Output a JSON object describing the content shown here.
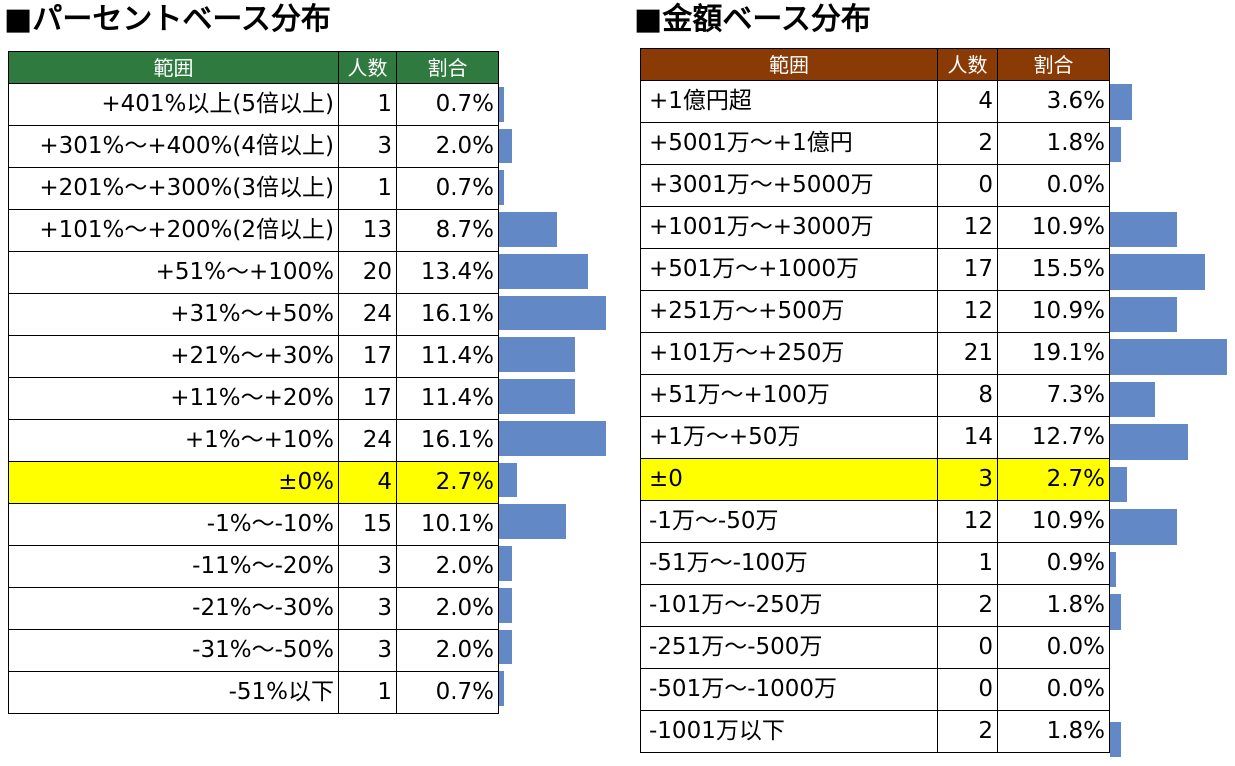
{
  "left": {
    "title": "■パーセントベース分布",
    "headers": [
      "範囲",
      "人数",
      "割合"
    ],
    "highlight_label": "±0%",
    "rows": [
      {
        "range": "+401%以上(5倍以上)",
        "count": "1",
        "pct": "0.7%"
      },
      {
        "range": "+301%～+400%(4倍以上)",
        "count": "3",
        "pct": "2.0%"
      },
      {
        "range": "+201%～+300%(3倍以上)",
        "count": "1",
        "pct": "0.7%"
      },
      {
        "range": "+101%～+200%(2倍以上)",
        "count": "13",
        "pct": "8.7%"
      },
      {
        "range": "+51%～+100%",
        "count": "20",
        "pct": "13.4%"
      },
      {
        "range": "+31%～+50%",
        "count": "24",
        "pct": "16.1%"
      },
      {
        "range": "+21%～+30%",
        "count": "17",
        "pct": "11.4%"
      },
      {
        "range": "+11%～+20%",
        "count": "17",
        "pct": "11.4%"
      },
      {
        "range": "+1%～+10%",
        "count": "24",
        "pct": "16.1%"
      },
      {
        "range": "±0%",
        "count": "4",
        "pct": "2.7%"
      },
      {
        "range": "-1%～-10%",
        "count": "15",
        "pct": "10.1%"
      },
      {
        "range": "-11%～-20%",
        "count": "3",
        "pct": "2.0%"
      },
      {
        "range": "-21%～-30%",
        "count": "3",
        "pct": "2.0%"
      },
      {
        "range": "-31%～-50%",
        "count": "3",
        "pct": "2.0%"
      },
      {
        "range": "-51%以下",
        "count": "1",
        "pct": "0.7%"
      }
    ]
  },
  "right": {
    "title": "■金額ベース分布",
    "headers": [
      "範囲",
      "人数",
      "割合"
    ],
    "highlight_label": "±0",
    "rows": [
      {
        "range": "+1億円超",
        "count": "4",
        "pct": "3.6%"
      },
      {
        "range": "+5001万～+1億円",
        "count": "2",
        "pct": "1.8%"
      },
      {
        "range": "+3001万～+5000万",
        "count": "0",
        "pct": "0.0%"
      },
      {
        "range": "+1001万～+3000万",
        "count": "12",
        "pct": "10.9%"
      },
      {
        "range": "+501万～+1000万",
        "count": "17",
        "pct": "15.5%"
      },
      {
        "range": "+251万～+500万",
        "count": "12",
        "pct": "10.9%"
      },
      {
        "range": "+101万～+250万",
        "count": "21",
        "pct": "19.1%"
      },
      {
        "range": "+51万～+100万",
        "count": "8",
        "pct": "7.3%"
      },
      {
        "range": "+1万～+50万",
        "count": "14",
        "pct": "12.7%"
      },
      {
        "range": "±0",
        "count": "3",
        "pct": "2.7%"
      },
      {
        "range": "-1万～-50万",
        "count": "12",
        "pct": "10.9%"
      },
      {
        "range": "-51万～-100万",
        "count": "1",
        "pct": "0.9%"
      },
      {
        "range": "-101万～-250万",
        "count": "2",
        "pct": "1.8%"
      },
      {
        "range": "-251万～-500万",
        "count": "0",
        "pct": "0.0%"
      },
      {
        "range": "-501万～-1000万",
        "count": "0",
        "pct": "0.0%"
      },
      {
        "range": "-1001万以下",
        "count": "2",
        "pct": "1.8%"
      }
    ]
  },
  "chart_data": [
    {
      "type": "bar",
      "orientation": "horizontal",
      "title": "■パーセントベース分布",
      "categories": [
        "+401%以上(5倍以上)",
        "+301%～+400%(4倍以上)",
        "+201%～+300%(3倍以上)",
        "+101%～+200%(2倍以上)",
        "+51%～+100%",
        "+31%～+50%",
        "+21%～+30%",
        "+11%～+20%",
        "+1%～+10%",
        "±0%",
        "-1%～-10%",
        "-11%～-20%",
        "-21%～-30%",
        "-31%～-50%",
        "-51%以下"
      ],
      "counts": [
        1,
        3,
        1,
        13,
        20,
        24,
        17,
        17,
        24,
        4,
        15,
        3,
        3,
        3,
        1
      ],
      "values": [
        0.7,
        2.0,
        0.7,
        8.7,
        13.4,
        16.1,
        11.4,
        11.4,
        16.1,
        2.7,
        10.1,
        2.0,
        2.0,
        2.0,
        0.7
      ],
      "highlight_color": "#ffff00",
      "bar_color": "#6289c6",
      "header_color": "#2e7a3f"
    },
    {
      "type": "bar",
      "orientation": "horizontal",
      "title": "■金額ベース分布",
      "categories": [
        "+1億円超",
        "+5001万～+1億円",
        "+3001万～+5000万",
        "+1001万～+3000万",
        "+501万～+1000万",
        "+251万～+500万",
        "+101万～+250万",
        "+51万～+100万",
        "+1万～+50万",
        "±0",
        "-1万～-50万",
        "-51万～-100万",
        "-101万～-250万",
        "-251万～-500万",
        "-501万～-1000万",
        "-1001万以下"
      ],
      "counts": [
        4,
        2,
        0,
        12,
        17,
        12,
        21,
        8,
        14,
        3,
        12,
        1,
        2,
        0,
        0,
        2
      ],
      "values": [
        3.6,
        1.8,
        0.0,
        10.9,
        15.5,
        10.9,
        19.1,
        7.3,
        12.7,
        2.7,
        10.9,
        0.9,
        1.8,
        0.0,
        0.0,
        1.8
      ],
      "highlight_color": "#ffff00",
      "bar_color": "#6289c6",
      "header_color": "#8a3a05"
    }
  ]
}
